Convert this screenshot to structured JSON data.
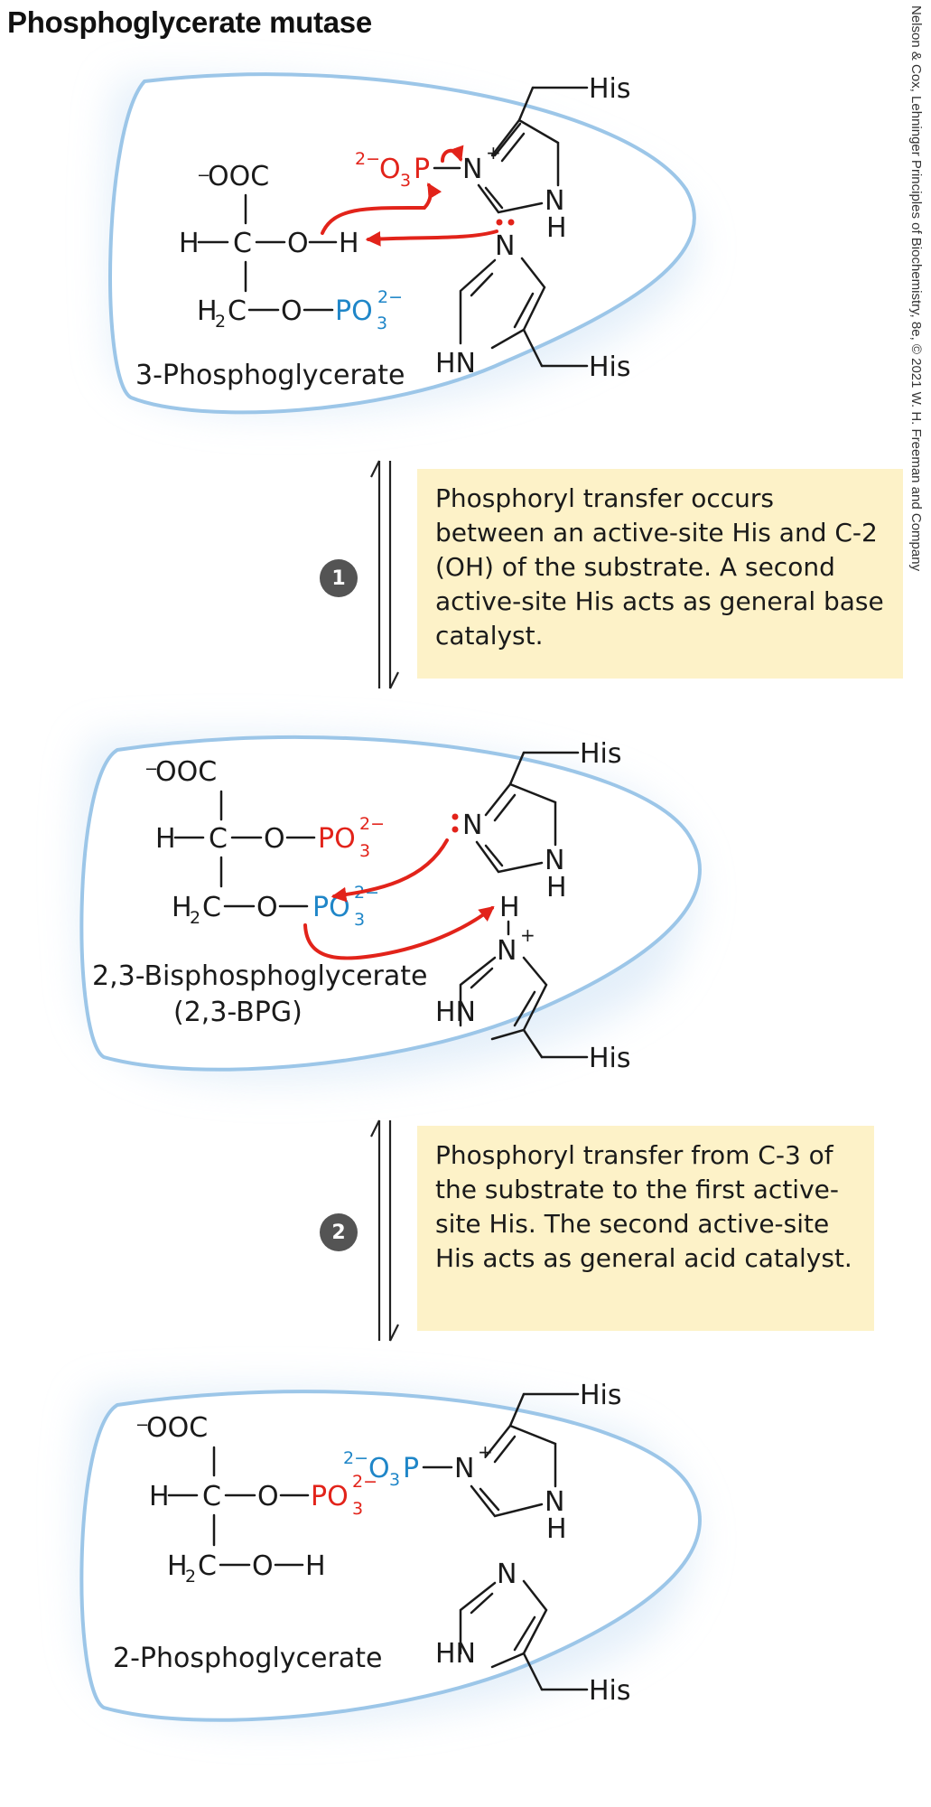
{
  "title": "Phosphoglycerate mutase",
  "credit": "Nelson & Cox, Lehninger Principles of Biochemistry, 8e, © 2021 W. H. Freeman and Company",
  "colors": {
    "red_phosphoryl": "#e2231a",
    "blue_phosphoryl": "#1f86c8",
    "pocket_outline": "#9cc6e8",
    "pocket_glow": "#e3eef9",
    "note_background": "#fdf2c8",
    "step_badge": "#545454"
  },
  "steps": [
    {
      "number": "1",
      "description": "Phosphoryl transfer occurs between an active-site His and C-2 (OH) of the substrate. A second active-site His acts as general base catalyst."
    },
    {
      "number": "2",
      "description": "Phosphoryl transfer from C-3 of the substrate to the first active-site His. The second active-site His acts as general acid catalyst."
    }
  ],
  "states": [
    {
      "name": "3-Phosphoglycerate",
      "name_line2": ""
    },
    {
      "name": "2,3-Bisphosphoglycerate",
      "name_line2": "(2,3-BPG)"
    },
    {
      "name": "2-Phosphoglycerate",
      "name_line2": ""
    }
  ],
  "labels": {
    "his": "His",
    "carboxylate": "OOC",
    "minus": "−",
    "two_minus": "2−",
    "phosphoryl_group": "PO",
    "phosphoryl_group_on_his": "O",
    "subscript_3": "3",
    "subscript_2": "2",
    "phosphorus": "P",
    "nitrogen": "N",
    "plus": "+",
    "hydrogen": "H",
    "nh": "HN",
    "carbon": "C",
    "oxygen": "O",
    "ch2": "H"
  }
}
